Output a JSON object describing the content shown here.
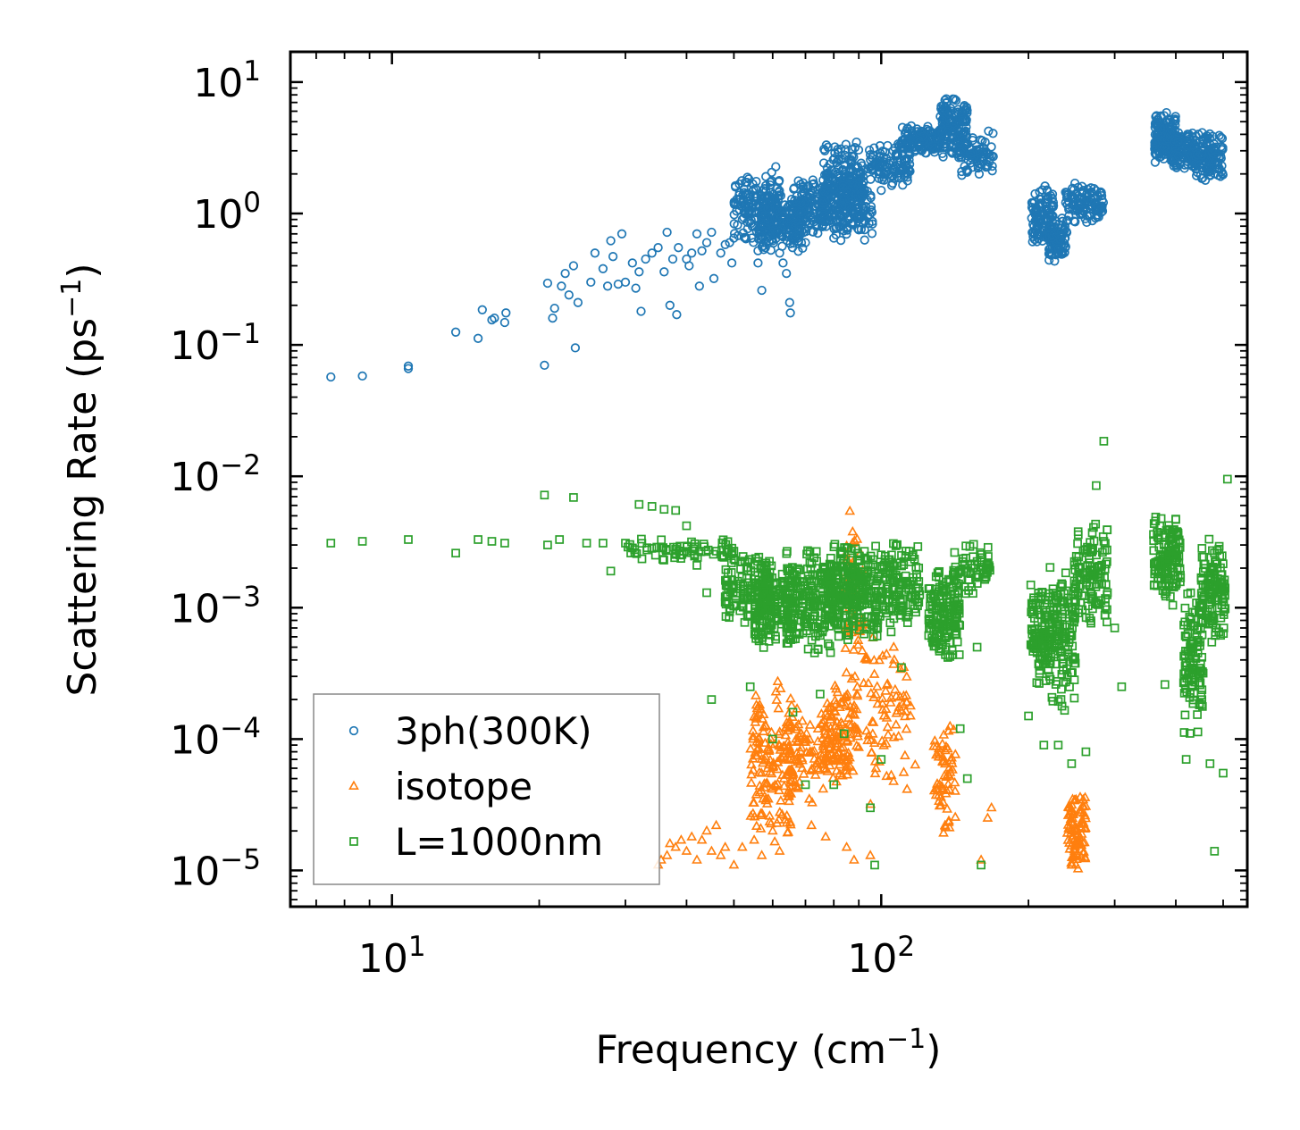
{
  "chart_data": {
    "type": "scatter",
    "xscale": "log",
    "yscale": "log",
    "xlim": [
      6.2,
      560
    ],
    "ylim": [
      5.3e-06,
      17
    ],
    "xlabel": {
      "text": "Frequency (cm",
      "sup": "−1",
      "close": ")"
    },
    "ylabel": {
      "text": "Scattering Rate (ps",
      "sup": "−1",
      "close": ")"
    },
    "x_ticks": [
      {
        "value": 10,
        "base": "10",
        "exp": "1"
      },
      {
        "value": 100,
        "base": "10",
        "exp": "2"
      }
    ],
    "y_ticks": [
      {
        "value": 10,
        "base": "10",
        "exp": "1"
      },
      {
        "value": 1,
        "base": "10",
        "exp": "0"
      },
      {
        "value": 0.1,
        "base": "10",
        "exp": "−1"
      },
      {
        "value": 0.01,
        "base": "10",
        "exp": "−2"
      },
      {
        "value": 0.001,
        "base": "10",
        "exp": "−3"
      },
      {
        "value": 0.0001,
        "base": "10",
        "exp": "−4"
      },
      {
        "value": 1e-05,
        "base": "10",
        "exp": "−5"
      }
    ],
    "legend_position": "lower-left",
    "series": [
      {
        "name": "3ph(300K)",
        "marker": "circle",
        "color": "#1f77b4",
        "points": [
          [
            7.5,
            0.057
          ],
          [
            8.7,
            0.058
          ],
          [
            10.8,
            0.066
          ],
          [
            10.8,
            0.069
          ],
          [
            13.5,
            0.125
          ],
          [
            15,
            0.112
          ],
          [
            15.3,
            0.185
          ],
          [
            16,
            0.155
          ],
          [
            16.2,
            0.16
          ],
          [
            17,
            0.148
          ],
          [
            17.1,
            0.175
          ],
          [
            20.5,
            0.07
          ],
          [
            20.8,
            0.295
          ],
          [
            21.3,
            0.16
          ],
          [
            21.5,
            0.19
          ],
          [
            22.2,
            0.28
          ],
          [
            22.6,
            0.35
          ],
          [
            23,
            0.24
          ],
          [
            23.5,
            0.4
          ],
          [
            23.7,
            0.095
          ],
          [
            24,
            0.21
          ],
          [
            25.5,
            0.3
          ],
          [
            26,
            0.5
          ],
          [
            27,
            0.38
          ],
          [
            27.6,
            0.28
          ],
          [
            28,
            0.62
          ],
          [
            28.3,
            0.47
          ],
          [
            29,
            0.29
          ],
          [
            29.5,
            0.7
          ],
          [
            30,
            0.3
          ],
          [
            31,
            0.42
          ],
          [
            31.5,
            0.27
          ],
          [
            32,
            0.36
          ],
          [
            32.3,
            0.18
          ],
          [
            33,
            0.45
          ],
          [
            34,
            0.5
          ],
          [
            35,
            0.55
          ],
          [
            36,
            0.36
          ],
          [
            36.5,
            0.72
          ],
          [
            37,
            0.2
          ],
          [
            37.5,
            0.45
          ],
          [
            38.2,
            0.17
          ],
          [
            38.5,
            0.55
          ],
          [
            40,
            0.45
          ],
          [
            40.5,
            0.4
          ],
          [
            41,
            0.5
          ],
          [
            42,
            0.7
          ],
          [
            42.5,
            0.28
          ],
          [
            43,
            0.52
          ],
          [
            44,
            0.6
          ],
          [
            45,
            0.72
          ],
          [
            45.5,
            0.32
          ],
          [
            47,
            0.5
          ],
          [
            48,
            0.58
          ],
          [
            49,
            0.6
          ],
          [
            49.5,
            0.42
          ],
          [
            50,
            0.65
          ],
          [
            52,
            0.9
          ],
          [
            55,
            0.8
          ],
          [
            56,
            0.42
          ],
          [
            57,
            0.26
          ],
          [
            58,
            0.55
          ],
          [
            60,
            0.62
          ],
          [
            62,
            0.5
          ],
          [
            63,
            0.42
          ],
          [
            64,
            0.35
          ],
          [
            65,
            0.21
          ],
          [
            65.2,
            0.175
          ],
          [
            68,
            0.75
          ],
          [
            70,
            0.6
          ],
          [
            73,
            1.0
          ],
          [
            76,
            1.2
          ],
          [
            80,
            0.65
          ],
          [
            82,
            0.8
          ],
          [
            86,
            0.9
          ],
          [
            90,
            0.75
          ],
          [
            95,
            2.8
          ],
          [
            100,
            1.5
          ]
        ],
        "clusters": [
          {
            "x_range": [
              50,
              62
            ],
            "y_range": [
              0.55,
              2.4
            ],
            "count": 160
          },
          {
            "x_range": [
              56,
              70
            ],
            "y_range": [
              0.5,
              1.4
            ],
            "count": 180
          },
          {
            "x_range": [
              66,
              78
            ],
            "y_range": [
              0.65,
              2.0
            ],
            "count": 130
          },
          {
            "x_range": [
              76,
              92
            ],
            "y_range": [
              0.7,
              3.8
            ],
            "count": 220
          },
          {
            "x_range": [
              80,
              96
            ],
            "y_range": [
              0.6,
              2.0
            ],
            "count": 110
          },
          {
            "x_range": [
              94,
              115
            ],
            "y_range": [
              1.5,
              3.5
            ],
            "count": 110
          },
          {
            "x_range": [
              110,
              132
            ],
            "y_range": [
              2.8,
              4.8
            ],
            "count": 130
          },
          {
            "x_range": [
              132,
              150
            ],
            "y_range": [
              2.5,
              8.0
            ],
            "count": 160
          },
          {
            "x_range": [
              145,
              170
            ],
            "y_range": [
              1.7,
              4.5
            ],
            "count": 70
          },
          {
            "x_range": [
              203,
              225
            ],
            "y_range": [
              0.55,
              1.7
            ],
            "count": 110
          },
          {
            "x_range": [
              220,
              240
            ],
            "y_range": [
              0.4,
              1.0
            ],
            "count": 80
          },
          {
            "x_range": [
              238,
              285
            ],
            "y_range": [
              0.8,
              1.8
            ],
            "count": 110
          },
          {
            "x_range": [
              362,
              400
            ],
            "y_range": [
              2.2,
              6.2
            ],
            "count": 140
          },
          {
            "x_range": [
              395,
              440
            ],
            "y_range": [
              2.0,
              4.5
            ],
            "count": 110
          },
          {
            "x_range": [
              435,
              500
            ],
            "y_range": [
              1.7,
              4.2
            ],
            "count": 130
          }
        ]
      },
      {
        "name": "isotope",
        "marker": "triangle",
        "color": "#ff7f0e",
        "points": [
          [
            35,
            1.1e-05
          ],
          [
            35.5,
            1.2e-05
          ],
          [
            36.5,
            1.3e-05
          ],
          [
            37,
            1.6e-05
          ],
          [
            38,
            1.5e-05
          ],
          [
            39,
            1.7e-05
          ],
          [
            40,
            1.4e-05
          ],
          [
            41,
            1.8e-05
          ],
          [
            42,
            1.2e-05
          ],
          [
            43,
            1.7e-05
          ],
          [
            44,
            2e-05
          ],
          [
            45,
            1.4e-05
          ],
          [
            46,
            2.2e-05
          ],
          [
            47,
            1.3e-05
          ],
          [
            48,
            1.5e-05
          ],
          [
            50,
            1.1e-05
          ],
          [
            52,
            1.5e-05
          ],
          [
            55,
            1.7e-05
          ],
          [
            57,
            1.3e-05
          ],
          [
            60,
            2e-05
          ],
          [
            62,
            1.4e-05
          ],
          [
            72,
            2.2e-05
          ],
          [
            77,
            1.8e-05
          ],
          [
            85,
            1.5e-05
          ],
          [
            88,
            1.2e-05
          ],
          [
            95,
            1.3e-05
          ],
          [
            135,
            2.2e-05
          ],
          [
            160,
            1.2e-05
          ],
          [
            165,
            2.5e-05
          ],
          [
            168,
            3e-05
          ],
          [
            245,
            1.1e-05
          ],
          [
            250,
            1.1e-05
          ]
        ],
        "clusters": [
          {
            "x_range": [
              54,
              66
            ],
            "y_range": [
              1.6e-05,
              0.0003
            ],
            "count": 160
          },
          {
            "x_range": [
              64,
              78
            ],
            "y_range": [
              3e-05,
              0.0002
            ],
            "count": 90
          },
          {
            "x_range": [
              76,
              90
            ],
            "y_range": [
              4e-05,
              0.0003
            ],
            "count": 130
          },
          {
            "x_range": [
              84,
              92
            ],
            "y_range": [
              0.0002,
              0.0065
            ],
            "count": 60
          },
          {
            "x_range": [
              92,
              118
            ],
            "y_range": [
              2.5e-05,
              0.0008
            ],
            "count": 80
          },
          {
            "x_range": [
              128,
              142
            ],
            "y_range": [
              1.3e-05,
              0.00015
            ],
            "count": 60
          },
          {
            "x_range": [
              240,
              262
            ],
            "y_range": [
              1e-05,
              4e-05
            ],
            "count": 90
          }
        ]
      },
      {
        "name": "L=1000nm",
        "marker": "square",
        "color": "#2ca02c",
        "points": [
          [
            7.5,
            0.0031
          ],
          [
            8.7,
            0.0032
          ],
          [
            10.8,
            0.0033
          ],
          [
            13.5,
            0.0026
          ],
          [
            15,
            0.0033
          ],
          [
            16,
            0.0032
          ],
          [
            17,
            0.0031
          ],
          [
            20.5,
            0.0072
          ],
          [
            20.8,
            0.003
          ],
          [
            22,
            0.0033
          ],
          [
            23.5,
            0.0069
          ],
          [
            25,
            0.0031
          ],
          [
            27,
            0.0031
          ],
          [
            28,
            0.0019
          ],
          [
            30,
            0.0031
          ],
          [
            32,
            0.0061
          ],
          [
            34,
            0.0059
          ],
          [
            36,
            0.0056
          ],
          [
            38,
            0.0055
          ],
          [
            40,
            0.0042
          ],
          [
            42,
            0.0021
          ],
          [
            44,
            0.0013
          ],
          [
            45,
            0.0002
          ],
          [
            48,
            0.0011
          ],
          [
            54,
            0.00025
          ],
          [
            60,
            0.0001
          ],
          [
            66,
            0.00016
          ],
          [
            70,
            4.5e-05
          ],
          [
            75,
            0.00022
          ],
          [
            80,
            4.5e-05
          ],
          [
            84,
            0.00011
          ],
          [
            95,
            3e-05
          ],
          [
            97,
            1.1e-05
          ],
          [
            100,
            7e-05
          ],
          [
            110,
            0.00035
          ],
          [
            130,
            0.0006
          ],
          [
            145,
            0.00012
          ],
          [
            150,
            5e-05
          ],
          [
            157,
            0.0005
          ],
          [
            160,
            1.1e-05
          ],
          [
            200,
            0.00015
          ],
          [
            215,
            9e-05
          ],
          [
            230,
            9e-05
          ],
          [
            245,
            6.5e-05
          ],
          [
            262,
            8e-05
          ],
          [
            275,
            0.0085
          ],
          [
            285,
            0.0185
          ],
          [
            290,
            0.0013
          ],
          [
            300,
            0.0007
          ],
          [
            310,
            0.00025
          ],
          [
            380,
            0.00026
          ],
          [
            420,
            7e-05
          ],
          [
            470,
            6.5e-05
          ],
          [
            480,
            1.4e-05
          ],
          [
            500,
            5.5e-05
          ],
          [
            510,
            0.0095
          ]
        ],
        "clusters": [
          {
            "x_range": [
              30,
              50
            ],
            "y_range": [
              0.0022,
              0.0034
            ],
            "count": 70
          },
          {
            "x_range": [
              48,
              60
            ],
            "y_range": [
              0.0007,
              0.0028
            ],
            "count": 120
          },
          {
            "x_range": [
              55,
              66
            ],
            "y_range": [
              0.00045,
              0.0022
            ],
            "count": 160
          },
          {
            "x_range": [
              64,
              80
            ],
            "y_range": [
              0.0004,
              0.0032
            ],
            "count": 200
          },
          {
            "x_range": [
              78,
              100
            ],
            "y_range": [
              0.0005,
              0.0035
            ],
            "count": 260
          },
          {
            "x_range": [
              100,
              120
            ],
            "y_range": [
              0.0006,
              0.0034
            ],
            "count": 130
          },
          {
            "x_range": [
              125,
              145
            ],
            "y_range": [
              0.00035,
              0.0022
            ],
            "count": 150
          },
          {
            "x_range": [
              140,
              168
            ],
            "y_range": [
              0.0012,
              0.0034
            ],
            "count": 60
          },
          {
            "x_range": [
              202,
              222
            ],
            "y_range": [
              0.00025,
              0.0017
            ],
            "count": 110
          },
          {
            "x_range": [
              220,
              250
            ],
            "y_range": [
              0.00015,
              0.0025
            ],
            "count": 130
          },
          {
            "x_range": [
              248,
              290
            ],
            "y_range": [
              0.0007,
              0.0045
            ],
            "count": 120
          },
          {
            "x_range": [
              360,
              410
            ],
            "y_range": [
              0.001,
              0.0055
            ],
            "count": 130
          },
          {
            "x_range": [
              415,
              455
            ],
            "y_range": [
              0.0001,
              0.0015
            ],
            "count": 110
          },
          {
            "x_range": [
              450,
              505
            ],
            "y_range": [
              0.0005,
              0.0038
            ],
            "count": 120
          }
        ]
      }
    ]
  }
}
